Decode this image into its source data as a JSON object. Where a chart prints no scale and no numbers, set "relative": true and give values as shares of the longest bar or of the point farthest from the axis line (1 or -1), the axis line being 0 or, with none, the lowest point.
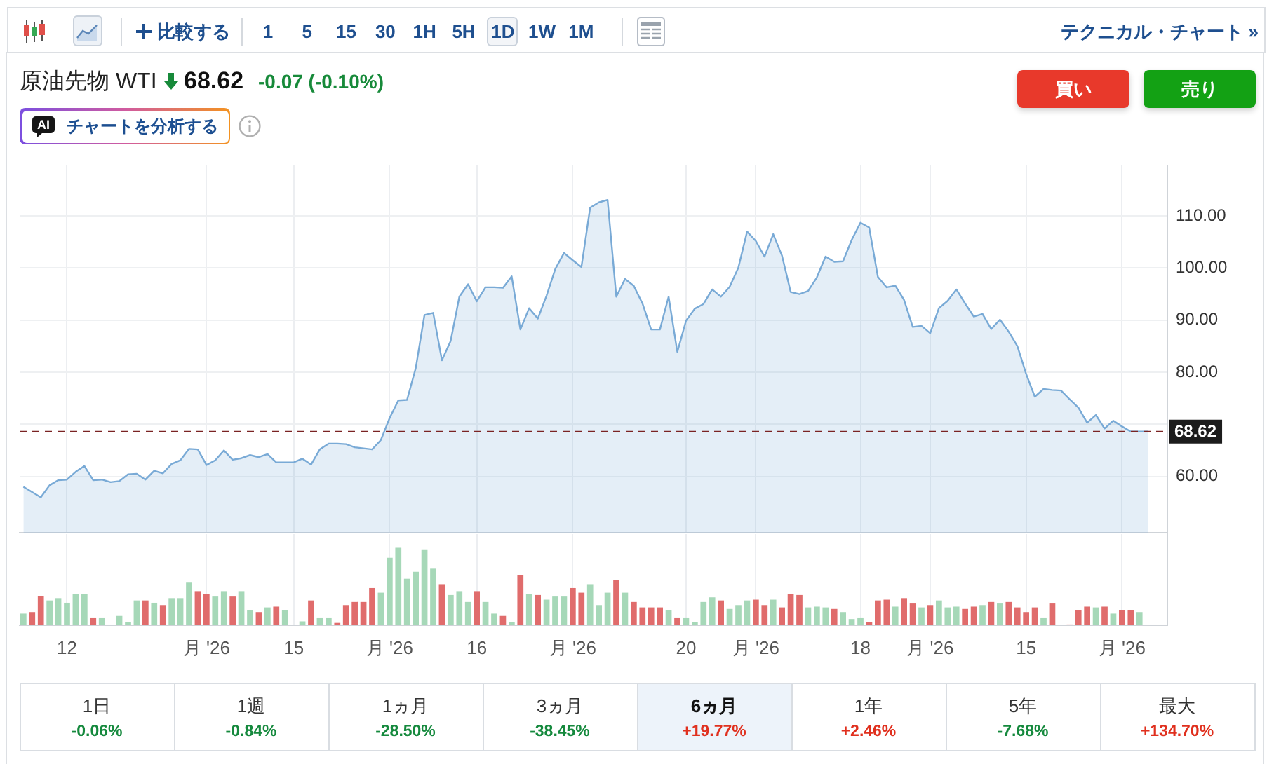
{
  "chart_data": [
    {
      "type": "other",
      "annotations": [
        "比較する",
        "1 5 15 30 1H 5H 1D 1W 1M",
        "テクニカル・チャート »"
      ]
    },
    {
      "type": "area",
      "title": "原油先物 WTI",
      "annotations": [
        "68.62",
        "-0.07 (-0.10%)",
        "買い",
        "売り",
        "AI",
        "チャートを分析する"
      ],
      "categories": [
        null,
        null,
        null,
        null,
        null,
        null,
        null,
        null,
        null,
        null,
        null,
        null,
        null,
        null,
        null,
        null,
        null,
        null,
        null,
        null,
        null,
        null,
        null,
        null,
        null,
        null,
        null,
        null,
        null,
        null,
        null,
        null,
        null,
        null,
        null,
        null,
        null,
        null,
        null,
        null,
        null,
        null,
        null,
        null,
        null,
        null,
        null,
        null,
        null,
        null,
        null,
        null,
        null,
        null,
        null,
        null,
        null,
        null,
        null,
        null,
        null,
        null,
        null,
        null,
        null,
        null,
        null,
        null,
        null,
        null,
        null,
        null,
        null,
        null,
        null,
        null,
        null,
        null,
        null,
        null,
        null,
        null,
        null,
        null,
        null,
        null,
        null,
        null,
        null,
        null,
        null,
        null,
        null,
        null,
        null,
        null,
        null,
        null,
        null,
        null,
        null,
        null,
        null,
        null,
        null,
        null,
        null,
        null,
        null,
        null,
        null,
        null,
        null,
        null,
        null,
        null,
        null,
        null,
        null,
        null,
        null,
        null,
        null,
        null,
        null,
        null,
        null,
        null,
        null,
        null
      ],
      "values": [
        58,
        57,
        56,
        58.3,
        59.3,
        59.4,
        60.9,
        62,
        59.3,
        59.4,
        58.9,
        59.1,
        60.4,
        60.5,
        59.4,
        61.1,
        60.6,
        62.4,
        63.1,
        65.3,
        65.2,
        62.2,
        63.1,
        65,
        63.2,
        63.5,
        64.1,
        63.7,
        64.3,
        62.7,
        62.7,
        62.7,
        63.4,
        62.3,
        65.2,
        66.3,
        66.3,
        66.2,
        65.6,
        65.4,
        65.2,
        67,
        71.2,
        74.6,
        74.7,
        80.8,
        91,
        91.4,
        82.3,
        86,
        94.5,
        96.9,
        93.6,
        96.3,
        96.3,
        96.2,
        98.4,
        88.2,
        92.3,
        90.3,
        94.7,
        99.8,
        102.9,
        101.5,
        100.2,
        111.6,
        112.6,
        113.1,
        94.5,
        97.9,
        96.6,
        93.2,
        88.2,
        88.2,
        94.5,
        83.9,
        89.9,
        92.2,
        93.1,
        95.9,
        94.5,
        96.4,
        100.1,
        107,
        105.2,
        102.2,
        106.5,
        102.4,
        95.4,
        95,
        95.6,
        98.2,
        102.2,
        101.2,
        101.3,
        105.4,
        108.7,
        107.8,
        98.3,
        96.3,
        96.6,
        93.9,
        88.7,
        88.9,
        87.5,
        92.3,
        93.7,
        95.9,
        93.2,
        90.7,
        91.2,
        88.3,
        90.1,
        87.8,
        85,
        79.7,
        75.3,
        76.8,
        76.6,
        76.5,
        74.8,
        73.2,
        70.3,
        71.8,
        69.2,
        70.7,
        69.6,
        68.6,
        68.6,
        68.62
      ],
      "color": "#79aad6",
      "marker": "none",
      "ylim": [
        49.2,
        119.7
      ],
      "yticks": [
        {
          "value": 60,
          "label": "60.00"
        },
        {
          "value": 70,
          "label": null
        },
        {
          "value": 80,
          "label": "80.00"
        },
        {
          "value": 90,
          "label": "90.00"
        },
        {
          "value": 100,
          "label": "100.00"
        },
        {
          "value": 110,
          "label": "110.00"
        }
      ],
      "ref_lines": [
        {
          "axis": "y",
          "value": 68.62,
          "label": "68.62",
          "color": "#7a2323",
          "line_style": "dashed"
        }
      ],
      "grid": true,
      "tick_labels": "y"
    },
    {
      "type": "bar",
      "relative": true,
      "categories": [
        null,
        null,
        null,
        null,
        null,
        "12",
        null,
        null,
        null,
        null,
        null,
        null,
        null,
        null,
        null,
        null,
        null,
        null,
        null,
        null,
        null,
        "月 '26",
        null,
        null,
        null,
        null,
        null,
        null,
        null,
        null,
        null,
        "15",
        null,
        null,
        null,
        null,
        null,
        null,
        null,
        null,
        null,
        null,
        "月 '26",
        null,
        null,
        null,
        null,
        null,
        null,
        null,
        null,
        null,
        "16",
        null,
        null,
        null,
        null,
        null,
        null,
        null,
        null,
        null,
        null,
        "月 '26",
        null,
        null,
        null,
        null,
        null,
        null,
        null,
        null,
        null,
        null,
        null,
        null,
        "20",
        null,
        null,
        null,
        null,
        null,
        null,
        null,
        "月 '26",
        null,
        null,
        null,
        null,
        null,
        null,
        null,
        null,
        null,
        null,
        null,
        "18",
        null,
        null,
        null,
        null,
        null,
        null,
        null,
        "月 '26",
        null,
        null,
        null,
        null,
        null,
        null,
        null,
        null,
        null,
        null,
        "15",
        null,
        null,
        null,
        null,
        null,
        null,
        null,
        null,
        null,
        null,
        "月 '26",
        null,
        null,
        null
      ],
      "values": [
        0.15,
        0.17,
        0.38,
        0.32,
        0.35,
        0.29,
        0.4,
        0.4,
        0.1,
        0.1,
        null,
        0.12,
        0.04,
        0.32,
        0.32,
        0.29,
        0.26,
        0.35,
        0.35,
        0.55,
        0.44,
        0.4,
        0.37,
        0.44,
        0.37,
        0.44,
        0.19,
        0.17,
        0.23,
        0.24,
        0.19,
        null,
        0.05,
        0.32,
        0.1,
        0.1,
        0.03,
        0.26,
        0.3,
        0.3,
        0.48,
        0.42,
        0.87,
        1,
        0.6,
        0.69,
        0.98,
        0.73,
        0.53,
        0.39,
        0.44,
        0.3,
        0.44,
        0.3,
        0.15,
        0.12,
        0.04,
        0.65,
        0.4,
        0.39,
        0.33,
        0.37,
        0.37,
        0.48,
        0.42,
        0.53,
        0.26,
        0.42,
        0.58,
        0.42,
        0.3,
        0.23,
        0.23,
        0.23,
        0.19,
        0.1,
        0.1,
        0.04,
        0.3,
        0.36,
        0.32,
        0.21,
        0.26,
        0.32,
        0.33,
        0.26,
        0.33,
        0.23,
        0.4,
        0.39,
        0.23,
        0.24,
        0.23,
        0.21,
        0.17,
        0.08,
        0.1,
        0.04,
        0.32,
        0.33,
        0.24,
        0.35,
        0.28,
        0.23,
        0.26,
        0.32,
        0.23,
        0.24,
        0.21,
        0.24,
        0.26,
        0.3,
        0.28,
        0.3,
        0.23,
        0.17,
        0.23,
        0.1,
        0.28,
        null,
        0.01,
        0.19,
        0.24,
        0.23,
        0.24,
        0.15,
        0.19,
        0.19,
        0.17,
        null
      ],
      "colors": [
        "#a6d8b8",
        "#e06c6c",
        "#e06c6c",
        "#a6d8b8",
        "#a6d8b8",
        "#a6d8b8",
        "#a6d8b8",
        "#a6d8b8",
        "#e06c6c",
        "#a6d8b8",
        null,
        "#a6d8b8",
        "#a6d8b8",
        "#a6d8b8",
        "#e06c6c",
        "#a6d8b8",
        "#e06c6c",
        "#a6d8b8",
        "#a6d8b8",
        "#a6d8b8",
        "#e06c6c",
        "#e06c6c",
        "#a6d8b8",
        "#a6d8b8",
        "#e06c6c",
        "#a6d8b8",
        "#a6d8b8",
        "#e06c6c",
        "#a6d8b8",
        "#e06c6c",
        "#a6d8b8",
        null,
        "#a6d8b8",
        "#e06c6c",
        "#a6d8b8",
        "#a6d8b8",
        "#e06c6c",
        "#e06c6c",
        "#e06c6c",
        "#e06c6c",
        "#e06c6c",
        "#a6d8b8",
        "#a6d8b8",
        "#a6d8b8",
        "#a6d8b8",
        "#a6d8b8",
        "#a6d8b8",
        "#a6d8b8",
        "#e06c6c",
        "#a6d8b8",
        "#a6d8b8",
        "#a6d8b8",
        "#e06c6c",
        "#a6d8b8",
        "#a6d8b8",
        "#e06c6c",
        "#a6d8b8",
        "#e06c6c",
        "#a6d8b8",
        "#e06c6c",
        "#a6d8b8",
        "#a6d8b8",
        "#a6d8b8",
        "#e06c6c",
        "#e06c6c",
        "#a6d8b8",
        "#a6d8b8",
        "#a6d8b8",
        "#e06c6c",
        "#a6d8b8",
        "#e06c6c",
        "#e06c6c",
        "#e06c6c",
        "#e06c6c",
        "#a6d8b8",
        "#e06c6c",
        "#a6d8b8",
        "#a6d8b8",
        "#a6d8b8",
        "#a6d8b8",
        "#e06c6c",
        "#a6d8b8",
        "#a6d8b8",
        "#a6d8b8",
        "#e06c6c",
        "#e06c6c",
        "#a6d8b8",
        "#e06c6c",
        "#e06c6c",
        "#e06c6c",
        "#a6d8b8",
        "#a6d8b8",
        "#a6d8b8",
        "#e06c6c",
        "#a6d8b8",
        "#a6d8b8",
        "#a6d8b8",
        "#e06c6c",
        "#e06c6c",
        "#e06c6c",
        "#a6d8b8",
        "#e06c6c",
        "#e06c6c",
        "#a6d8b8",
        "#e06c6c",
        "#a6d8b8",
        "#a6d8b8",
        "#a6d8b8",
        "#e06c6c",
        "#e06c6c",
        "#a6d8b8",
        "#e06c6c",
        "#a6d8b8",
        "#e06c6c",
        "#e06c6c",
        "#e06c6c",
        "#e06c6c",
        "#a6d8b8",
        "#e06c6c",
        null,
        "#e06c6c",
        "#e06c6c",
        "#e06c6c",
        "#a6d8b8",
        "#e06c6c",
        "#a6d8b8",
        "#e06c6c",
        "#e06c6c",
        "#a6d8b8",
        null
      ],
      "grid": "x",
      "tick_labels": "x"
    },
    {
      "type": "other",
      "categories": [
        "1日",
        "1週",
        "1ヵ月",
        "3ヵ月",
        "6ヵ月",
        "1年",
        "5年",
        "最大"
      ],
      "values": [
        -0.06,
        -0.84,
        -28.5,
        -38.45,
        19.77,
        2.46,
        -7.68,
        134.7
      ],
      "value_labels": [
        "-0.06%",
        "-0.84%",
        "-28.50%",
        "-38.45%",
        "+19.77%",
        "+2.46%",
        "-7.68%",
        "+134.70%"
      ]
    }
  ]
}
